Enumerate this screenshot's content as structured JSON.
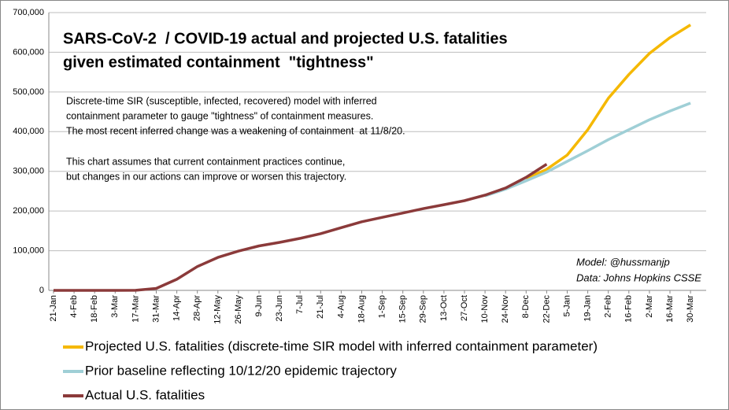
{
  "chart_data": {
    "type": "line",
    "title_lines": [
      "SARS-CoV-2  / COVID-19 actual and projected U.S. fatalities",
      "given estimated containment  \"tightness\""
    ],
    "annotations": [
      "Discrete-time SIR (susceptible, infected, recovered) model with inferred",
      "containment parameter to gauge \"tightness\" of containment measures.",
      "The most recent inferred change was a weakening of containment  at 11/8/20.",
      "This chart assumes that current containment practices continue,",
      "but changes in our actions can improve or worsen this trajectory."
    ],
    "credits": [
      "Model: @hussmanjp",
      "Data: Johns Hopkins CSSE"
    ],
    "categories": [
      "21-Jan",
      "4-Feb",
      "18-Feb",
      "3-Mar",
      "17-Mar",
      "31-Mar",
      "14-Apr",
      "28-Apr",
      "12-May",
      "26-May",
      "9-Jun",
      "23-Jun",
      "7-Jul",
      "21-Jul",
      "4-Aug",
      "18-Aug",
      "1-Sep",
      "15-Sep",
      "29-Sep",
      "13-Oct",
      "27-Oct",
      "10-Nov",
      "24-Nov",
      "8-Dec",
      "22-Dec",
      "5-Jan",
      "19-Jan",
      "2-Feb",
      "16-Feb",
      "2-Mar",
      "16-Mar",
      "30-Mar"
    ],
    "series": [
      {
        "name": "Projected U.S. fatalities (discrete-time SIR model with inferred containment parameter)",
        "color": "#f5b800",
        "values": [
          null,
          null,
          null,
          null,
          null,
          null,
          null,
          null,
          null,
          null,
          null,
          null,
          null,
          null,
          null,
          null,
          null,
          null,
          null,
          null,
          null,
          null,
          null,
          282000,
          305000,
          341000,
          405000,
          484000,
          544000,
          597000,
          637000,
          669000
        ]
      },
      {
        "name": "Prior baseline reflecting 10/12/20 epidemic trajectory",
        "color": "#9fcfd6",
        "values": [
          null,
          null,
          null,
          null,
          null,
          null,
          null,
          null,
          null,
          null,
          null,
          null,
          null,
          null,
          null,
          null,
          null,
          null,
          null,
          null,
          null,
          238000,
          255000,
          276000,
          298000,
          325000,
          352000,
          380000,
          405000,
          430000,
          452000,
          472000
        ]
      },
      {
        "name": "Actual U.S. fatalities",
        "color": "#8b3a3a",
        "values": [
          0,
          0,
          0,
          0,
          100,
          5000,
          28000,
          60000,
          83000,
          99000,
          112000,
          121000,
          131000,
          143000,
          158000,
          173000,
          184000,
          195000,
          206000,
          216000,
          226000,
          240000,
          258000,
          285000,
          318000,
          null,
          null,
          null,
          null,
          null,
          null,
          null
        ]
      }
    ],
    "ylim": [
      0,
      700000
    ],
    "yticks": [
      0,
      {
        "value": 100000,
        "label": "100,000"
      },
      {
        "value": 200000,
        "label": "200,000"
      },
      {
        "value": 300000,
        "label": "300,000"
      },
      {
        "value": 400000,
        "label": "400,000"
      },
      {
        "value": 500000,
        "label": "500,000"
      },
      {
        "value": 600000,
        "label": "600,000"
      },
      {
        "value": 700000,
        "label": "700,000"
      }
    ],
    "grid": true
  }
}
